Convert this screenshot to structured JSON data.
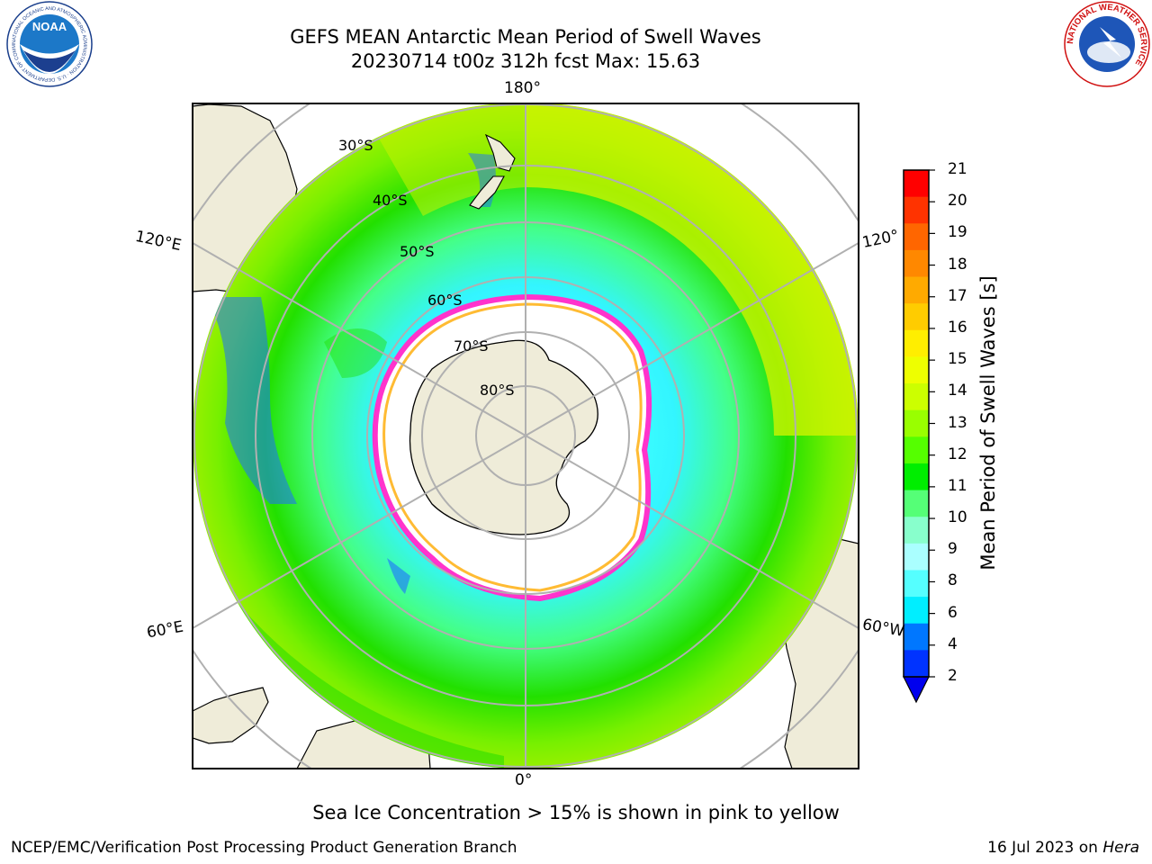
{
  "title_line1": "GEFS MEAN Antarctic Mean Period of Swell Waves",
  "title_line2": "20230714 t00z 312h fcst   Max: 15.63",
  "lon_labels": {
    "top": "180°",
    "bottom": "0°",
    "left_upper": "120°E",
    "left_lower": "60°E",
    "right_upper": "120°",
    "right_lower": "60°W"
  },
  "lat_labels": [
    "30°S",
    "40°S",
    "50°S",
    "60°S",
    "70°S",
    "80°S"
  ],
  "colorbar": {
    "label": "Mean Period of Swell Waves [s]",
    "ticks": [
      "21",
      "20",
      "19",
      "18",
      "17",
      "16",
      "15",
      "14",
      "13",
      "12",
      "11",
      "10",
      "9",
      "8",
      "6",
      "4",
      "2"
    ],
    "colors": [
      "#ff0000",
      "#ff3300",
      "#ff6600",
      "#ff8800",
      "#ffaa00",
      "#ffcc00",
      "#ffee00",
      "#eeff00",
      "#ccff00",
      "#99ff00",
      "#55ff00",
      "#00ee00",
      "#55ff77",
      "#88ffcc",
      "#aaffff",
      "#55ffff",
      "#00eeff",
      "#0077ff",
      "#0033ff"
    ]
  },
  "note": "Sea Ice Concentration > 15% is shown in pink to yellow",
  "footer_left": "NCEP/EMC/Verification Post Processing Product Generation Branch",
  "footer_right_prefix": "16 Jul 2023 on ",
  "footer_right_host": "Hera",
  "logos": {
    "noaa": "NOAA",
    "noaa_ring": "NATIONAL OCEANIC AND ATMOSPHERIC ADMINISTRATION · U.S. DEPARTMENT OF COMMERCE",
    "nws_ring": "NATIONAL WEATHER SERVICE"
  },
  "map": {
    "projection": "south-polar-stereographic",
    "land_color": "#efecd9",
    "ice_color": "#ffffff",
    "ice_edge_colors": [
      "#ff33cc",
      "#ffbb33"
    ]
  }
}
